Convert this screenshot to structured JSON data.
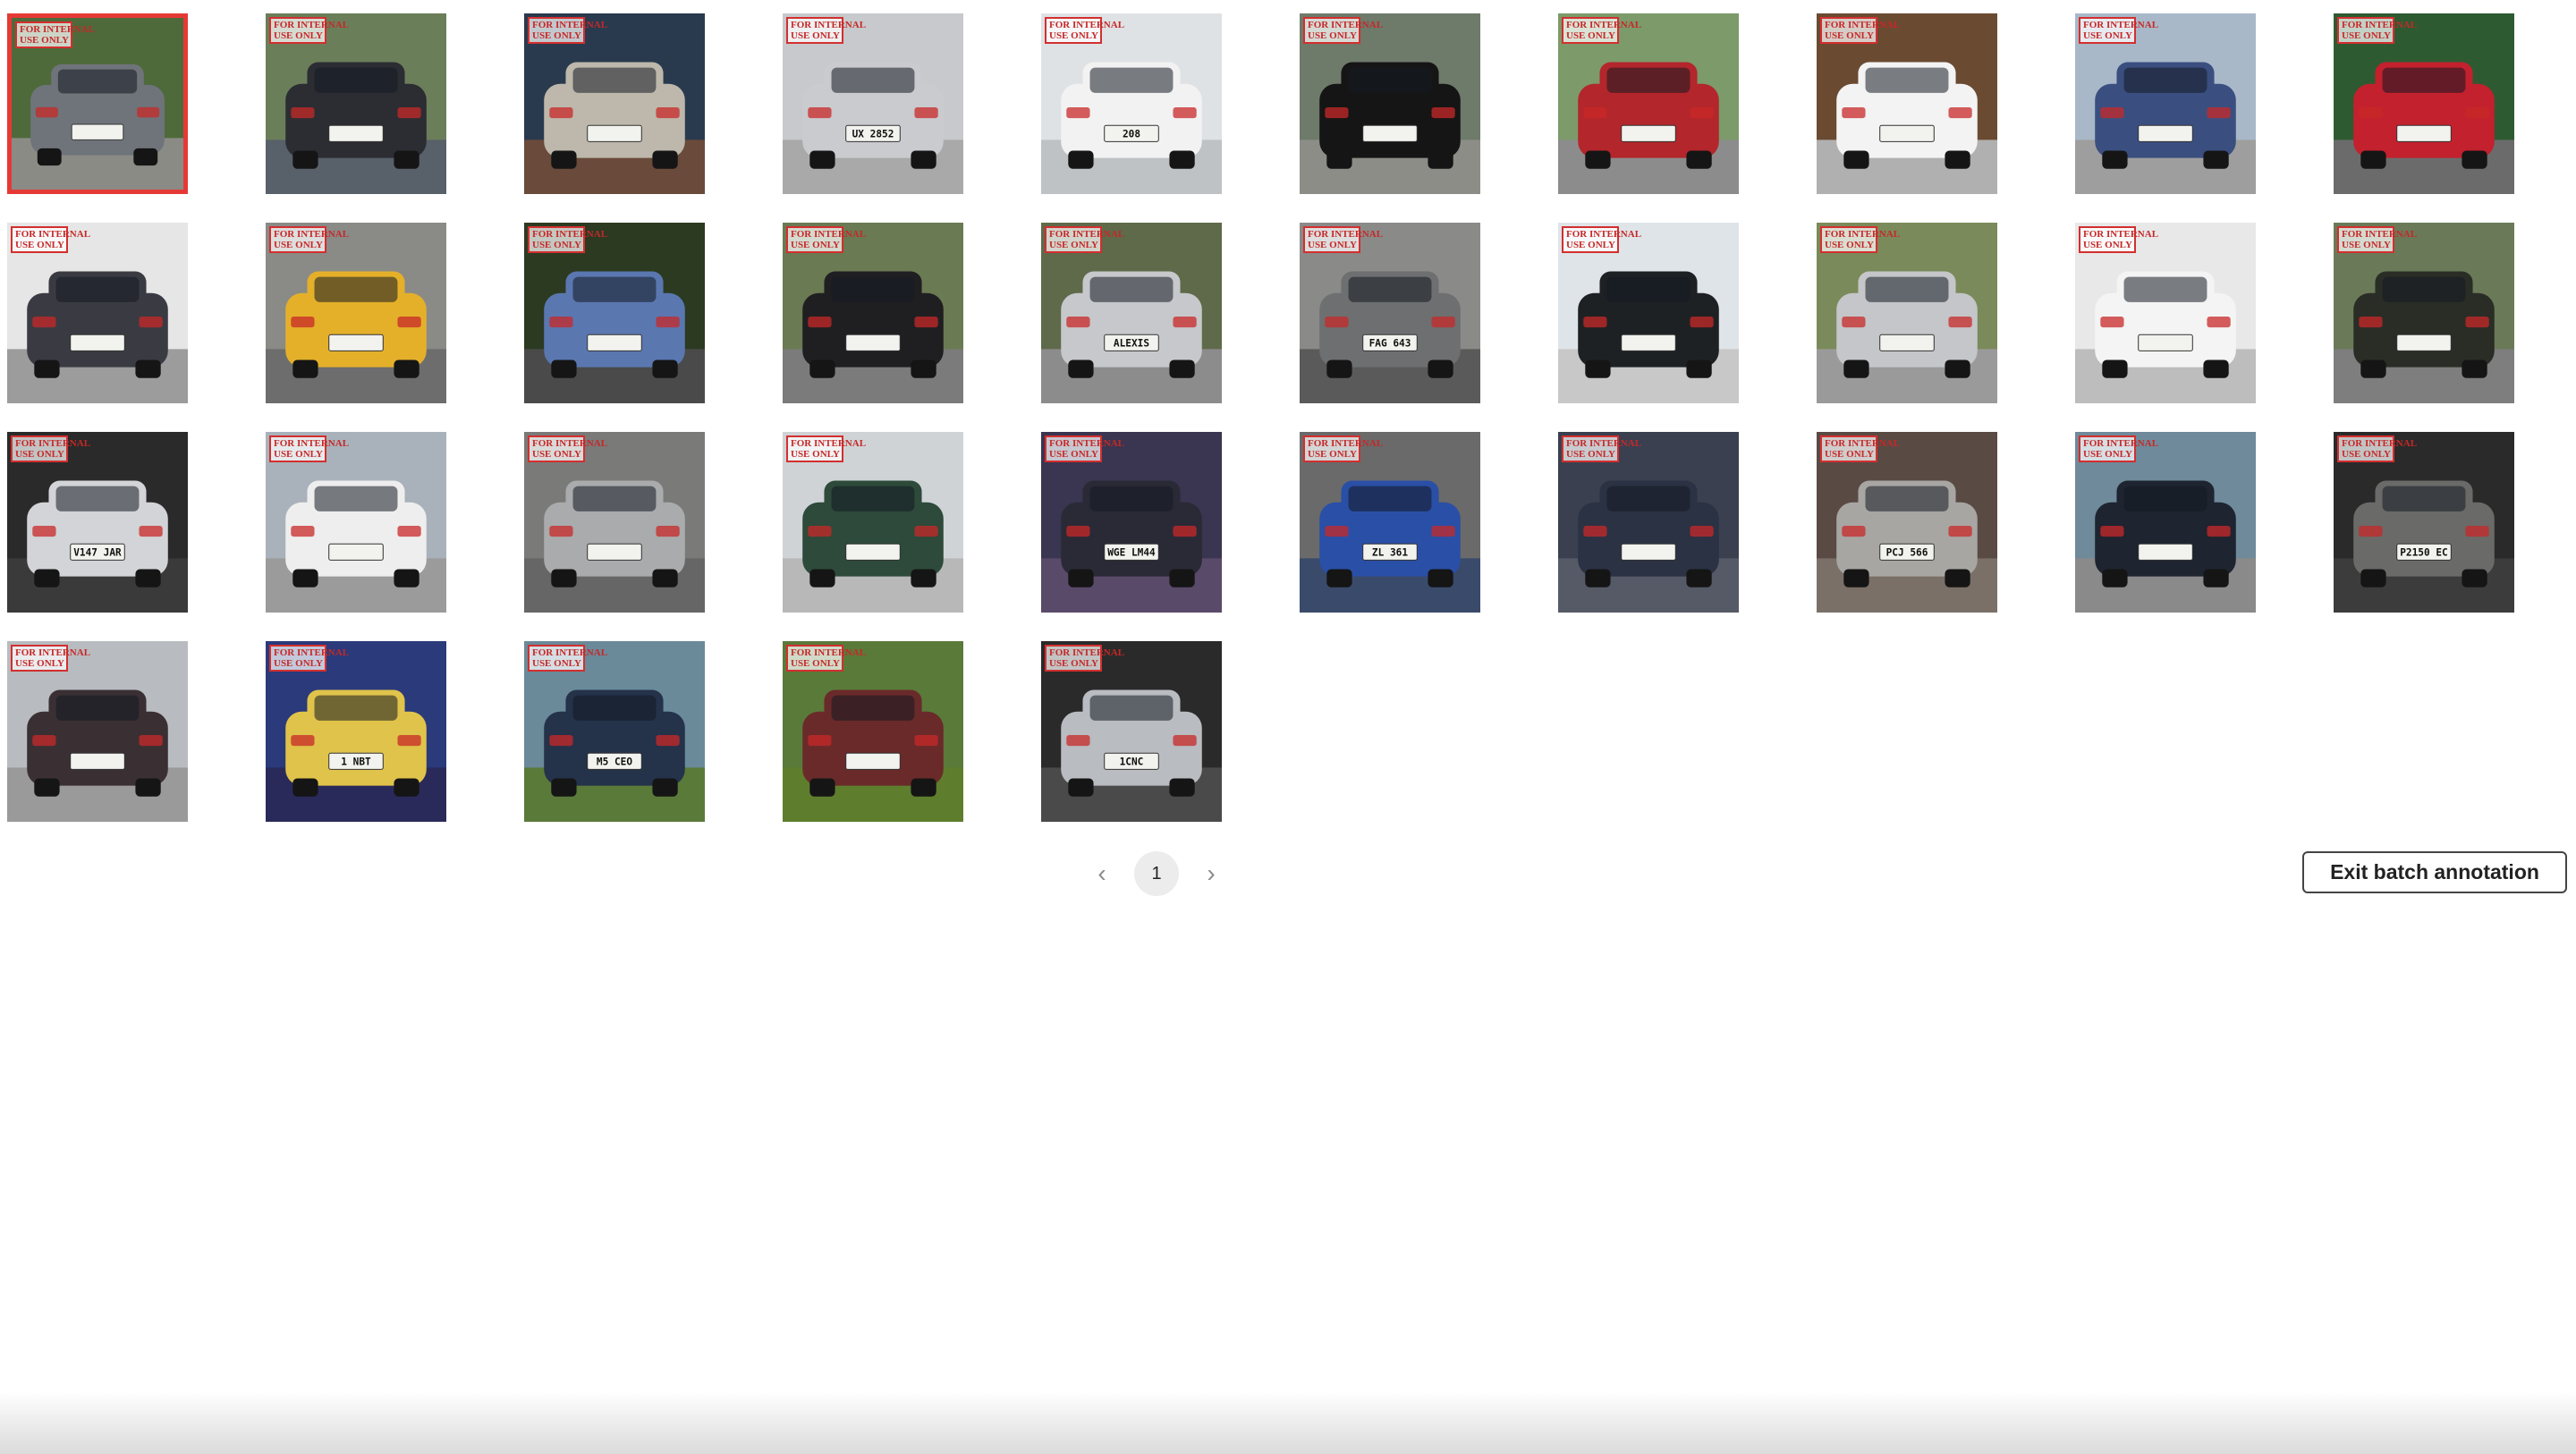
{
  "gallery": {
    "watermark": {
      "line1": "FOR INTERNAL",
      "line2": "USE ONLY"
    },
    "selected_index": 0,
    "images": [
      {
        "plate": "",
        "bg": "#4e6a3a",
        "car": "#6f747a",
        "ground": "#8b8b86"
      },
      {
        "plate": "",
        "bg": "#6b7e5a",
        "car": "#2b2d33",
        "ground": "#58606a"
      },
      {
        "plate": "",
        "bg": "#2a3a4e",
        "car": "#bdb8ab",
        "ground": "#6a4a3a"
      },
      {
        "plate": "UX 2852",
        "bg": "#c7c9cc",
        "car": "#c9cbcf",
        "ground": "#a9a9a9"
      },
      {
        "plate": "208",
        "bg": "#dfe2e5",
        "car": "#f2f2f2",
        "ground": "#bfc2c4"
      },
      {
        "plate": "",
        "bg": "#6e7a6a",
        "car": "#151515",
        "ground": "#8d8d88"
      },
      {
        "plate": "",
        "bg": "#7c9a6a",
        "car": "#b3262b",
        "ground": "#8c8c8c"
      },
      {
        "plate": "",
        "bg": "#6b4a32",
        "car": "#f3f3f3",
        "ground": "#b0b0b0"
      },
      {
        "plate": "",
        "bg": "#a9b8c8",
        "car": "#3a4f80",
        "ground": "#9e9e9e"
      },
      {
        "plate": "",
        "bg": "#2e5a32",
        "car": "#c3212d",
        "ground": "#6b6b6b"
      },
      {
        "plate": "",
        "bg": "#e6e6e6",
        "car": "#3a3b42",
        "ground": "#9c9c9c"
      },
      {
        "plate": "",
        "bg": "#8a8a86",
        "car": "#e4b02a",
        "ground": "#6d6d6d"
      },
      {
        "plate": "",
        "bg": "#2c3a22",
        "car": "#5a77b0",
        "ground": "#4a4a4a"
      },
      {
        "plate": "",
        "bg": "#6a7a52",
        "car": "#1f1f22",
        "ground": "#7b7b7b"
      },
      {
        "plate": "ALEXIS",
        "bg": "#5e6a4a",
        "car": "#c6c8cb",
        "ground": "#8c8c8c"
      },
      {
        "plate": "FAG 643",
        "bg": "#8a8a88",
        "car": "#6e6f70",
        "ground": "#5a5a5a"
      },
      {
        "plate": "",
        "bg": "#dfe4e8",
        "car": "#1e2124",
        "ground": "#c8c8c8"
      },
      {
        "plate": "",
        "bg": "#7b8a5a",
        "car": "#c4c6c9",
        "ground": "#9a9a9a"
      },
      {
        "plate": "",
        "bg": "#e8e8e8",
        "car": "#f4f4f4",
        "ground": "#bdbdbd"
      },
      {
        "plate": "",
        "bg": "#6a7a58",
        "car": "#2a2d26",
        "ground": "#7e7e7e"
      },
      {
        "plate": "V147 JAR",
        "bg": "#2a2a2a",
        "car": "#d2d4d7",
        "ground": "#3a3a3a"
      },
      {
        "plate": "",
        "bg": "#a9b2ba",
        "car": "#eeeeee",
        "ground": "#9b9b9b"
      },
      {
        "plate": "",
        "bg": "#7a7a78",
        "car": "#a9abad",
        "ground": "#666666"
      },
      {
        "plate": "",
        "bg": "#cfd3d6",
        "car": "#2d4a3a",
        "ground": "#b8b8b8"
      },
      {
        "plate": "WGE LM44",
        "bg": "#3a3550",
        "car": "#2a2a36",
        "ground": "#5a4a6a"
      },
      {
        "plate": "ZL 361",
        "bg": "#6a6a6a",
        "car": "#2a4fa6",
        "ground": "#3a4a6a"
      },
      {
        "plate": "",
        "bg": "#3a4050",
        "car": "#2b3244",
        "ground": "#555a66"
      },
      {
        "plate": "PCJ 566",
        "bg": "#5a4a44",
        "car": "#a8a6a3",
        "ground": "#7a7068"
      },
      {
        "plate": "",
        "bg": "#6f8a9a",
        "car": "#1e2430",
        "ground": "#8a8a8a"
      },
      {
        "plate": "P2150 EC",
        "bg": "#2a2a2a",
        "car": "#6a6a68",
        "ground": "#3c3c3c"
      },
      {
        "plate": "",
        "bg": "#b8bcc0",
        "car": "#3a3034",
        "ground": "#9a9a9a"
      },
      {
        "plate": "1 NBT",
        "bg": "#2a3a7a",
        "car": "#e0c34a",
        "ground": "#2a2a5a"
      },
      {
        "plate": "M5 CEO",
        "bg": "#6a8a9a",
        "car": "#24324a",
        "ground": "#5a7a3a"
      },
      {
        "plate": "",
        "bg": "#5a7a3a",
        "car": "#6a2a2a",
        "ground": "#5e7e2e"
      },
      {
        "plate": "1CNC",
        "bg": "#2a2a2a",
        "car": "#b9bcc0",
        "ground": "#4a4a4a"
      }
    ]
  },
  "pagination": {
    "prev_icon": "chevron-left-icon",
    "next_icon": "chevron-right-icon",
    "prev_glyph": "‹",
    "next_glyph": "›",
    "current_page": "1"
  },
  "actions": {
    "exit_label": "Exit batch annotation"
  }
}
